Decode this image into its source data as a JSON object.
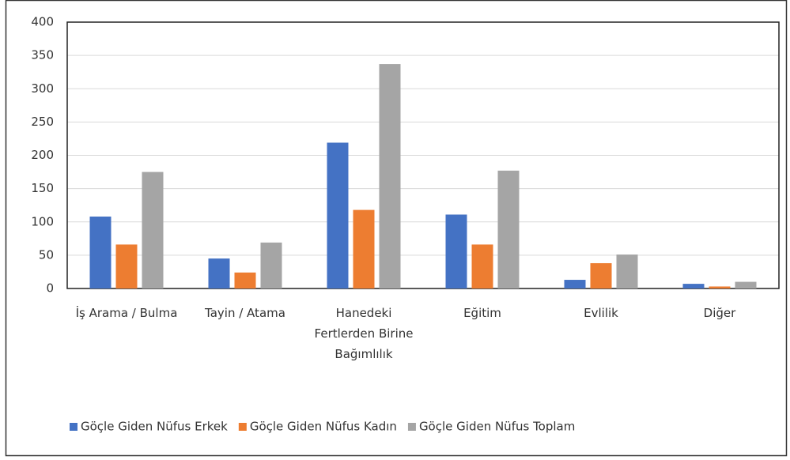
{
  "chart_data": {
    "type": "bar",
    "categories": [
      "İş Arama / Bulma",
      "Tayin / Atama",
      "Hanedeki Fertlerden Birine Bağımlılık",
      "Eğitim",
      "Evlilik",
      "Diğer"
    ],
    "series": [
      {
        "name": "Göçle Giden Nüfus Erkek",
        "color": "#4472c4",
        "values": [
          108,
          45,
          219,
          111,
          13,
          7
        ]
      },
      {
        "name": "Göçle Giden Nüfus Kadın",
        "color": "#ed7d31",
        "values": [
          66,
          24,
          118,
          66,
          38,
          3
        ]
      },
      {
        "name": "Göçle Giden Nüfus Toplam",
        "color": "#a5a5a5",
        "values": [
          175,
          69,
          337,
          177,
          51,
          10
        ]
      }
    ],
    "ylim": [
      0,
      400
    ],
    "yticks": [
      0,
      50,
      100,
      150,
      200,
      250,
      300,
      350,
      400
    ],
    "grid": true,
    "legend": "bottom"
  }
}
